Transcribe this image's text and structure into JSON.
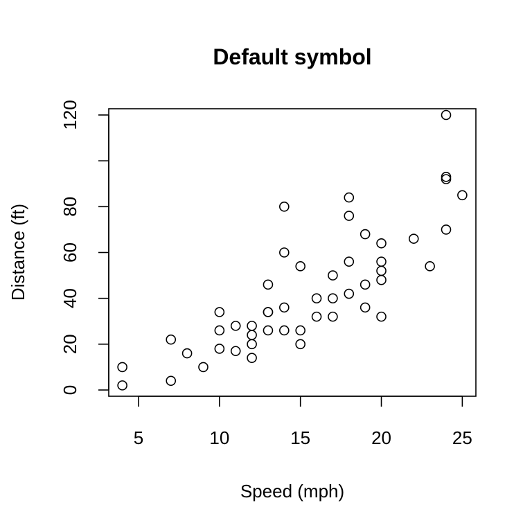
{
  "chart_data": {
    "type": "scatter",
    "title": "Default symbol",
    "xlabel": "Speed (mph)",
    "ylabel": "Distance (ft)",
    "xlim": [
      3.16,
      25.84
    ],
    "ylim": [
      -2.72,
      122.72
    ],
    "x_ticks": [
      5,
      10,
      15,
      20,
      25
    ],
    "x_tick_labels": [
      "5",
      "10",
      "15",
      "20",
      "25"
    ],
    "y_ticks": [
      0,
      20,
      40,
      60,
      80,
      100,
      120
    ],
    "y_tick_labels": [
      "0",
      "20",
      "40",
      "60",
      "80",
      "",
      "120"
    ],
    "grid": false,
    "legend": "none",
    "symbol": "open-circle",
    "color": "#000000",
    "x": [
      4,
      4,
      7,
      7,
      8,
      9,
      10,
      10,
      10,
      11,
      11,
      12,
      12,
      12,
      12,
      13,
      13,
      13,
      13,
      14,
      14,
      14,
      14,
      15,
      15,
      15,
      16,
      16,
      17,
      17,
      17,
      18,
      18,
      18,
      18,
      19,
      19,
      19,
      20,
      20,
      20,
      20,
      20,
      22,
      23,
      24,
      24,
      24,
      24,
      25
    ],
    "y": [
      2,
      10,
      4,
      22,
      16,
      10,
      18,
      26,
      34,
      17,
      28,
      14,
      20,
      24,
      28,
      26,
      34,
      34,
      46,
      26,
      36,
      60,
      80,
      20,
      26,
      54,
      32,
      40,
      32,
      40,
      50,
      42,
      56,
      76,
      84,
      36,
      46,
      68,
      32,
      48,
      52,
      56,
      64,
      66,
      54,
      70,
      92,
      93,
      120,
      85
    ]
  }
}
